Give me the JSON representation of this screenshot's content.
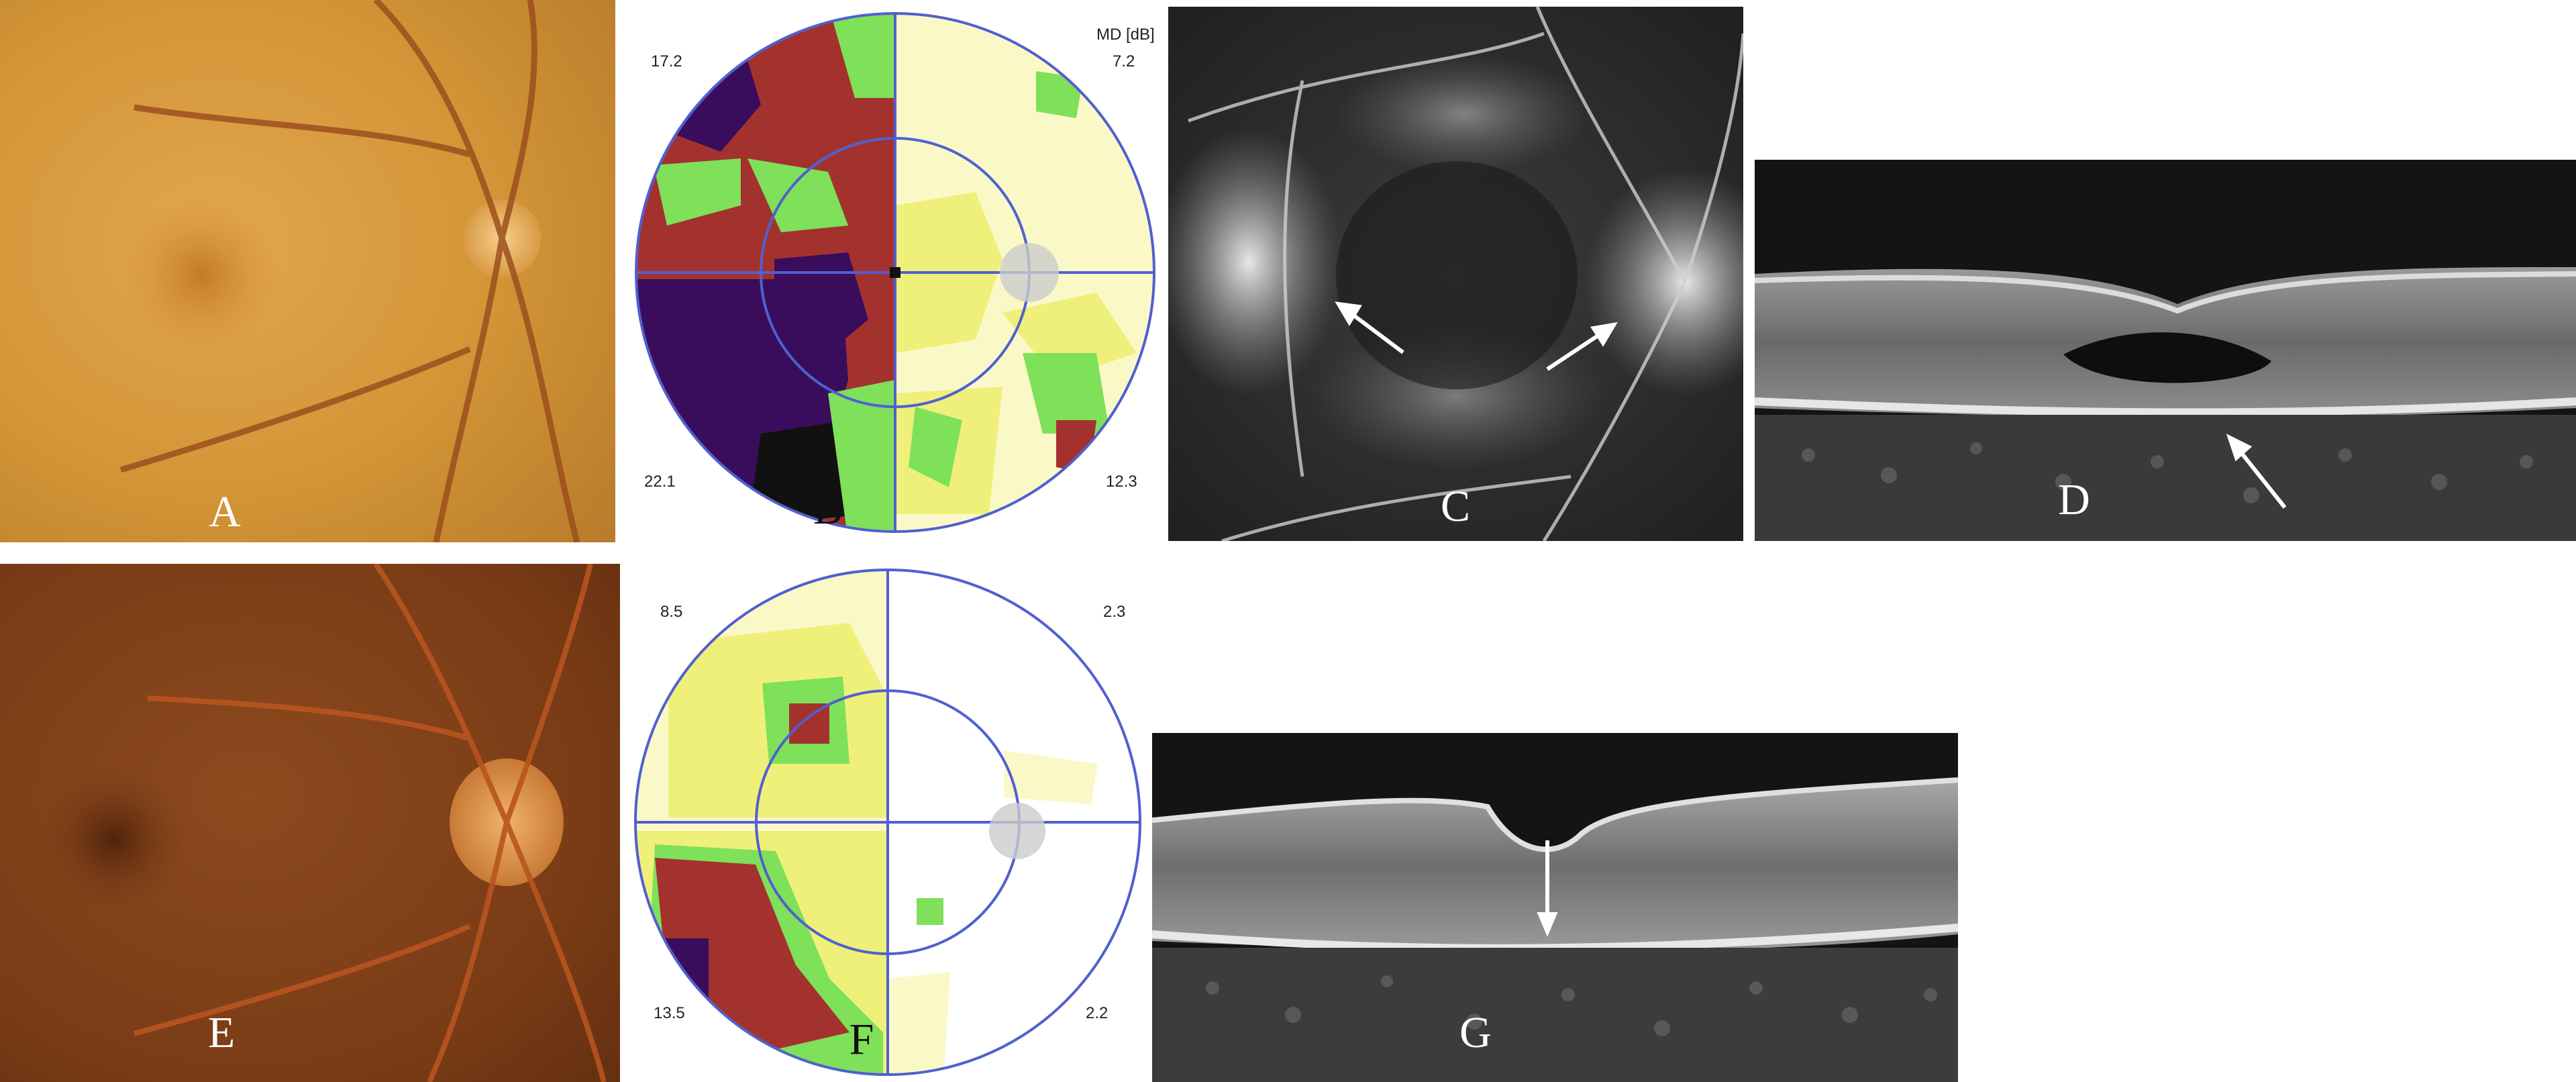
{
  "panels": {
    "A": {
      "label": "A"
    },
    "B": {
      "label": "B",
      "header": "MD [dB]",
      "md_values": [
        "17.2",
        "7.2",
        "22.1",
        "12.3"
      ]
    },
    "C": {
      "label": "C"
    },
    "D": {
      "label": "D"
    },
    "E": {
      "label": "E"
    },
    "F": {
      "label": "F",
      "md_values": [
        "8.5",
        "2.3",
        "13.5",
        "2.2"
      ]
    },
    "G": {
      "label": "G"
    }
  },
  "colors": {
    "vf_purple": "#3a0d5c",
    "vf_red": "#a3322e",
    "vf_green": "#7fe05a",
    "vf_yellow": "#eef07a",
    "vf_pale": "#fbf8c8",
    "vf_blue": "#5060d0",
    "fundus_orange": "#d8962e",
    "fundus_brown": "#8a4a1e"
  }
}
